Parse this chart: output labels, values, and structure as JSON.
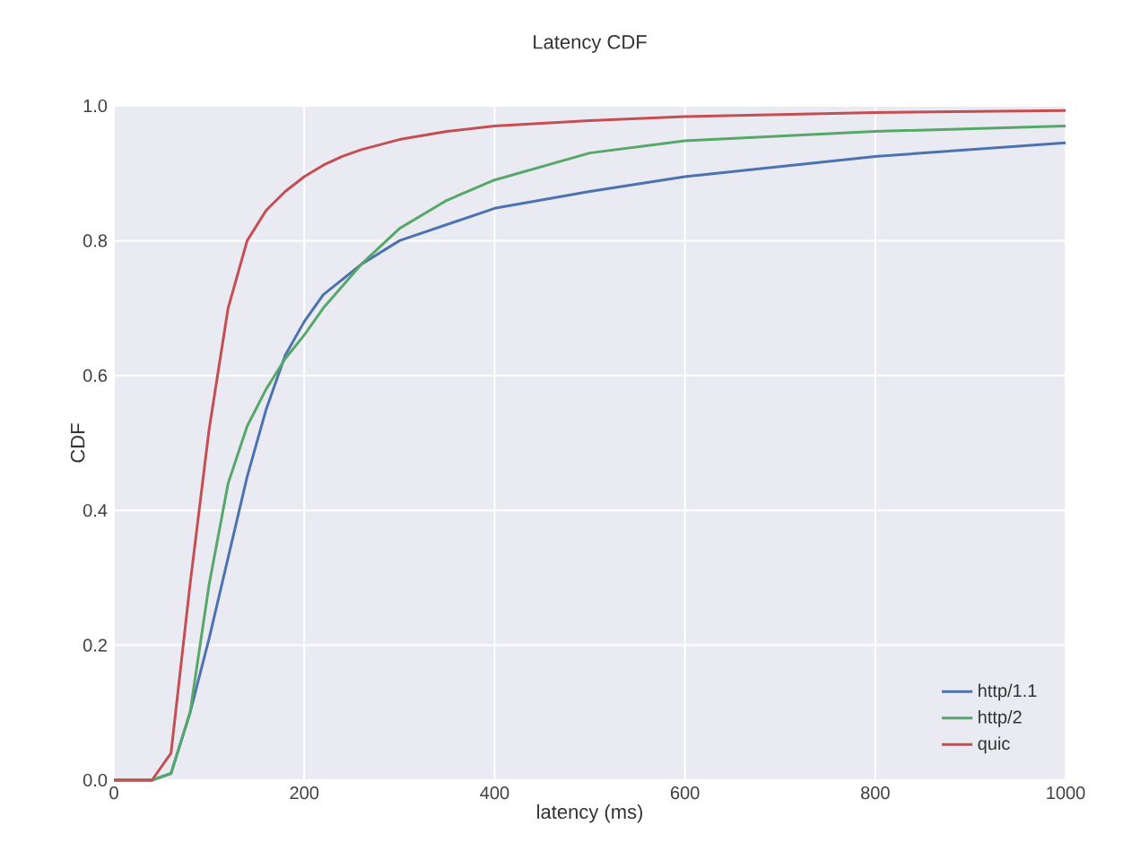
{
  "chart_data": {
    "type": "line",
    "title": "Latency CDF",
    "xlabel": "latency (ms)",
    "ylabel": "CDF",
    "xlim": [
      0,
      1000
    ],
    "ylim": [
      0,
      1.0
    ],
    "xticks": [
      0,
      200,
      400,
      600,
      800,
      1000
    ],
    "yticks": [
      {
        "value": 0,
        "label": "0.0"
      },
      {
        "value": 0.2,
        "label": "0.2"
      },
      {
        "value": 0.4,
        "label": "0.4"
      },
      {
        "value": 0.6,
        "label": "0.6"
      },
      {
        "value": 0.8,
        "label": "0.8"
      },
      {
        "value": 1.0,
        "label": "1.0"
      }
    ],
    "grid": true,
    "legend": "bottom right",
    "series": [
      {
        "name": "http/1.1",
        "color": "#4c72b0",
        "x": [
          0,
          40,
          60,
          80,
          100,
          120,
          140,
          160,
          180,
          200,
          220,
          260,
          300,
          400,
          500,
          600,
          800,
          1000
        ],
        "values": [
          0,
          0,
          0.01,
          0.1,
          0.21,
          0.33,
          0.45,
          0.55,
          0.63,
          0.68,
          0.72,
          0.765,
          0.8,
          0.848,
          0.873,
          0.895,
          0.925,
          0.945
        ]
      },
      {
        "name": "http/2",
        "color": "#55a868",
        "x": [
          0,
          40,
          60,
          80,
          100,
          120,
          140,
          160,
          180,
          200,
          220,
          260,
          300,
          350,
          400,
          500,
          600,
          800,
          1000
        ],
        "values": [
          0,
          0,
          0.01,
          0.1,
          0.29,
          0.44,
          0.525,
          0.58,
          0.625,
          0.66,
          0.7,
          0.765,
          0.818,
          0.86,
          0.89,
          0.93,
          0.948,
          0.962,
          0.97
        ]
      },
      {
        "name": "quic",
        "color": "#c44e52",
        "x": [
          0,
          40,
          60,
          80,
          100,
          120,
          140,
          160,
          180,
          200,
          220,
          240,
          260,
          300,
          350,
          400,
          500,
          600,
          800,
          1000
        ],
        "values": [
          0,
          0,
          0.04,
          0.29,
          0.52,
          0.7,
          0.8,
          0.845,
          0.873,
          0.895,
          0.912,
          0.925,
          0.935,
          0.95,
          0.962,
          0.97,
          0.978,
          0.984,
          0.99,
          0.993
        ]
      }
    ]
  }
}
